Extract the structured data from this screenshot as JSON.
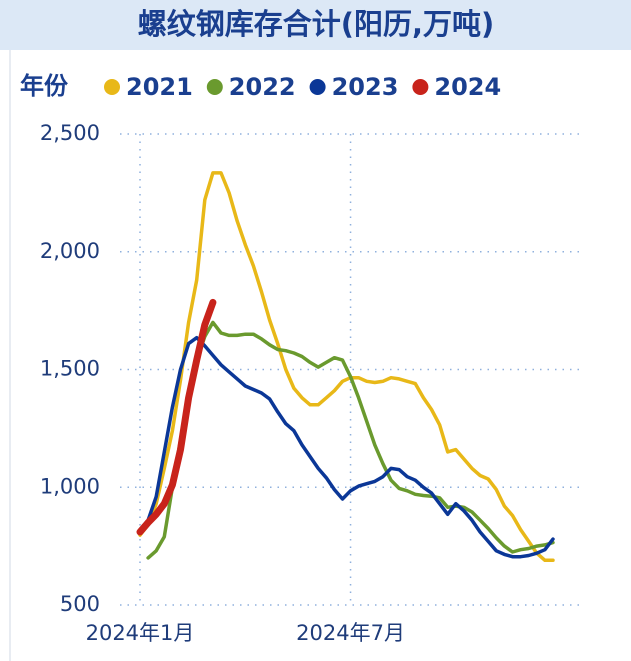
{
  "chart_data": {
    "type": "line",
    "title": "螺纹钢库存合计(阳历,万吨)",
    "legend_title": "年份",
    "categories": [
      "2024年1月",
      null,
      null,
      null,
      null,
      null,
      null,
      null,
      null,
      null,
      null,
      null,
      null,
      null,
      null,
      null,
      null,
      null,
      null,
      null,
      null,
      null,
      null,
      null,
      null,
      null,
      "2024年7月",
      null,
      null,
      null,
      null,
      null,
      null,
      null,
      null,
      null,
      null,
      null,
      null,
      null,
      null,
      null,
      null,
      null,
      null,
      null,
      null,
      null,
      null,
      null,
      null,
      null
    ],
    "series": [
      {
        "name": "2021",
        "color": "#e8b818",
        "values": [
          797,
          840,
          930,
          1080,
          1240,
          1455,
          1700,
          1880,
          2220,
          2335,
          2335,
          2250,
          2130,
          2030,
          1940,
          1830,
          1710,
          1610,
          1500,
          1420,
          1380,
          1350,
          1350,
          1380,
          1410,
          1450,
          1465,
          1465,
          1450,
          1445,
          1450,
          1465,
          1460,
          1450,
          1440,
          1380,
          1330,
          1265,
          1150,
          1160,
          1120,
          1080,
          1050,
          1035,
          990,
          920,
          880,
          820,
          770,
          720,
          690,
          690
        ]
      },
      {
        "name": "2022",
        "color": "#6a9a2e",
        "values": [
          null,
          700,
          730,
          790,
          1000,
          1200,
          1390,
          1540,
          1640,
          1700,
          1655,
          1645,
          1645,
          1650,
          1650,
          1630,
          1605,
          1585,
          1580,
          1570,
          1555,
          1530,
          1510,
          1530,
          1550,
          1540,
          1470,
          1380,
          1280,
          1180,
          1100,
          1030,
          995,
          985,
          970,
          965,
          962,
          955,
          915,
          920,
          915,
          895,
          860,
          825,
          785,
          750,
          725,
          735,
          740,
          750,
          755,
          765
        ]
      },
      {
        "name": "2023",
        "color": "#0b3797",
        "values": [
          820,
          860,
          960,
          1150,
          1340,
          1500,
          1610,
          1635,
          1600,
          1560,
          1520,
          1490,
          1460,
          1430,
          1415,
          1400,
          1375,
          1320,
          1270,
          1240,
          1180,
          1130,
          1080,
          1040,
          990,
          950,
          985,
          1005,
          1015,
          1025,
          1045,
          1080,
          1075,
          1045,
          1030,
          1000,
          975,
          930,
          885,
          930,
          900,
          860,
          810,
          770,
          730,
          715,
          705,
          705,
          710,
          720,
          735,
          780
        ]
      },
      {
        "name": "2024",
        "color": "#c8231b",
        "values": [
          810,
          850,
          885,
          930,
          1010,
          1160,
          1380,
          1540,
          1690,
          1785,
          null,
          null,
          null,
          null,
          null,
          null,
          null,
          null,
          null,
          null,
          null,
          null,
          null,
          null,
          null,
          null,
          null,
          null,
          null,
          null,
          null,
          null,
          null,
          null,
          null,
          null,
          null,
          null,
          null,
          null,
          null,
          null,
          null,
          null,
          null,
          null,
          null,
          null,
          null,
          null,
          null,
          null
        ]
      }
    ],
    "ylim": [
      500,
      2500
    ],
    "yticks": [
      500,
      {
        "value": 1000,
        "label": "1,000"
      },
      {
        "value": 1500,
        "label": "1,500"
      },
      {
        "value": 2000,
        "label": "2,000"
      },
      {
        "value": 2500,
        "label": "2,500"
      }
    ],
    "grid": true,
    "legend": "top-left"
  }
}
